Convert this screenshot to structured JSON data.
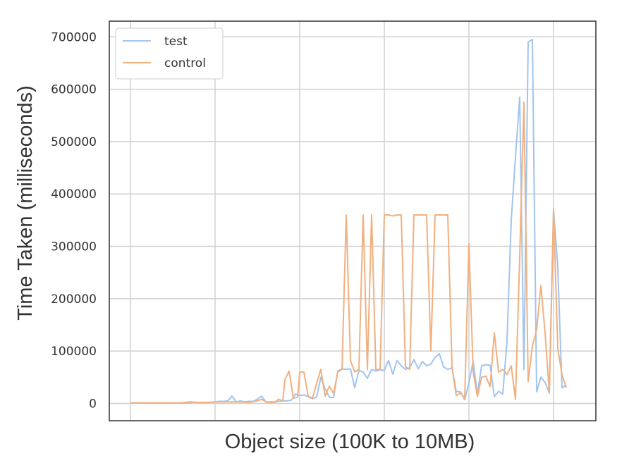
{
  "chart_data": {
    "type": "line",
    "xlabel": "Object size (100K to 10MB)",
    "ylabel": "Time Taken (milliseconds)",
    "ylim": [
      -33000,
      730000
    ],
    "x_range": [
      -5,
      110
    ],
    "grid": true,
    "legend_placement": "top-left",
    "y_ticks": [
      0,
      100000,
      200000,
      300000,
      400000,
      500000,
      600000,
      700000
    ],
    "y_tick_labels": [
      "0",
      "100000",
      "200000",
      "300000",
      "400000",
      "500000",
      "600000",
      "700000"
    ],
    "x_gridlines": [
      0,
      20,
      40,
      60,
      80,
      100
    ],
    "series": [
      {
        "name": "test",
        "color": "#a1c4f0",
        "points": [
          [
            0,
            1000
          ],
          [
            2,
            1000
          ],
          [
            4,
            1000
          ],
          [
            6,
            1000
          ],
          [
            8,
            1000
          ],
          [
            10,
            1000
          ],
          [
            12,
            1000
          ],
          [
            14,
            1000
          ],
          [
            15,
            2000
          ],
          [
            17,
            2000
          ],
          [
            19,
            2000
          ],
          [
            20,
            3000
          ],
          [
            21,
            4000
          ],
          [
            22,
            4000
          ],
          [
            23,
            5000
          ],
          [
            24,
            14000
          ],
          [
            25,
            3000
          ],
          [
            26,
            5000
          ],
          [
            27,
            3000
          ],
          [
            28,
            4000
          ],
          [
            29,
            4000
          ],
          [
            30,
            8000
          ],
          [
            31,
            14000
          ],
          [
            32,
            3000
          ],
          [
            33,
            3000
          ],
          [
            34,
            3000
          ],
          [
            35,
            4000
          ],
          [
            36,
            5000
          ],
          [
            37,
            5000
          ],
          [
            38,
            6000
          ],
          [
            39,
            18000
          ],
          [
            40,
            15000
          ],
          [
            41,
            16000
          ],
          [
            42,
            13000
          ],
          [
            43,
            9000
          ],
          [
            44,
            12000
          ],
          [
            45,
            50000
          ],
          [
            46,
            28000
          ],
          [
            47,
            12000
          ],
          [
            48,
            11000
          ],
          [
            49,
            62000
          ],
          [
            50,
            66000
          ],
          [
            51,
            65000
          ],
          [
            52,
            66000
          ],
          [
            53,
            30000
          ],
          [
            54,
            63000
          ],
          [
            55,
            60000
          ],
          [
            56,
            48000
          ],
          [
            57,
            65000
          ],
          [
            58,
            62000
          ],
          [
            59,
            64000
          ],
          [
            60,
            63000
          ],
          [
            61,
            82000
          ],
          [
            62,
            56000
          ],
          [
            63,
            82000
          ],
          [
            64,
            72000
          ],
          [
            65,
            65000
          ],
          [
            66,
            68000
          ],
          [
            67,
            84000
          ],
          [
            68,
            66000
          ],
          [
            69,
            80000
          ],
          [
            70,
            72000
          ],
          [
            71,
            75000
          ],
          [
            72,
            88000
          ],
          [
            73,
            95000
          ],
          [
            74,
            70000
          ],
          [
            75,
            65000
          ],
          [
            76,
            68000
          ],
          [
            77,
            23000
          ],
          [
            78,
            22000
          ],
          [
            79,
            7000
          ],
          [
            80,
            40000
          ],
          [
            81,
            80000
          ],
          [
            82,
            18000
          ],
          [
            83,
            72000
          ],
          [
            84,
            74000
          ],
          [
            85,
            73000
          ],
          [
            86,
            13000
          ],
          [
            87,
            23000
          ],
          [
            88,
            18000
          ],
          [
            89,
            120000
          ],
          [
            90,
            350000
          ],
          [
            91,
            470000
          ],
          [
            92,
            585000
          ],
          [
            93,
            65000
          ],
          [
            94,
            690000
          ],
          [
            95,
            695000
          ],
          [
            96,
            22000
          ],
          [
            97,
            50000
          ],
          [
            98,
            40000
          ],
          [
            99,
            20000
          ],
          [
            100,
            370000
          ],
          [
            101,
            260000
          ],
          [
            102,
            30000
          ],
          [
            103,
            35000
          ]
        ]
      },
      {
        "name": "control",
        "color": "#f2b07f",
        "points": [
          [
            0,
            1000
          ],
          [
            3,
            1000
          ],
          [
            6,
            1000
          ],
          [
            9,
            1000
          ],
          [
            12,
            1000
          ],
          [
            14,
            3000
          ],
          [
            16,
            2000
          ],
          [
            18,
            2000
          ],
          [
            20,
            3000
          ],
          [
            22,
            3000
          ],
          [
            24,
            3000
          ],
          [
            26,
            3000
          ],
          [
            28,
            2000
          ],
          [
            30,
            5000
          ],
          [
            31,
            8000
          ],
          [
            32,
            3000
          ],
          [
            33,
            2000
          ],
          [
            34,
            2000
          ],
          [
            35,
            8000
          ],
          [
            36,
            5000
          ],
          [
            36.5,
            45000
          ],
          [
            37.5,
            62000
          ],
          [
            38.5,
            10000
          ],
          [
            39.5,
            12000
          ],
          [
            40,
            60000
          ],
          [
            41,
            60000
          ],
          [
            42,
            14000
          ],
          [
            43,
            10000
          ],
          [
            44,
            38000
          ],
          [
            45,
            65000
          ],
          [
            46,
            14000
          ],
          [
            47,
            33000
          ],
          [
            48,
            19000
          ],
          [
            49,
            60000
          ],
          [
            50,
            65000
          ],
          [
            51,
            360000
          ],
          [
            52,
            82000
          ],
          [
            53,
            60000
          ],
          [
            54,
            65000
          ],
          [
            55,
            360000
          ],
          [
            56,
            65000
          ],
          [
            57,
            360000
          ],
          [
            58,
            65000
          ],
          [
            59,
            65000
          ],
          [
            60,
            360000
          ],
          [
            61,
            360000
          ],
          [
            62,
            358000
          ],
          [
            63,
            360000
          ],
          [
            64,
            360000
          ],
          [
            65,
            70000
          ],
          [
            66,
            65000
          ],
          [
            67,
            360000
          ],
          [
            68,
            360000
          ],
          [
            69,
            360000
          ],
          [
            70,
            360000
          ],
          [
            71,
            100000
          ],
          [
            72,
            360000
          ],
          [
            73,
            360000
          ],
          [
            74,
            360000
          ],
          [
            75,
            360000
          ],
          [
            76,
            70000
          ],
          [
            77,
            15000
          ],
          [
            78,
            20000
          ],
          [
            79,
            10000
          ],
          [
            80,
            305000
          ],
          [
            81,
            60000
          ],
          [
            82,
            13000
          ],
          [
            83,
            50000
          ],
          [
            84,
            52000
          ],
          [
            85,
            32000
          ],
          [
            86,
            135000
          ],
          [
            87,
            60000
          ],
          [
            88,
            65000
          ],
          [
            89,
            55000
          ],
          [
            90,
            72000
          ],
          [
            91,
            8000
          ],
          [
            92,
            280000
          ],
          [
            93,
            575000
          ],
          [
            94,
            42000
          ],
          [
            95,
            110000
          ],
          [
            96,
            140000
          ],
          [
            97,
            225000
          ],
          [
            98,
            135000
          ],
          [
            99,
            20000
          ],
          [
            100,
            372000
          ],
          [
            101,
            105000
          ],
          [
            102,
            55000
          ],
          [
            103,
            30000
          ]
        ]
      }
    ]
  }
}
